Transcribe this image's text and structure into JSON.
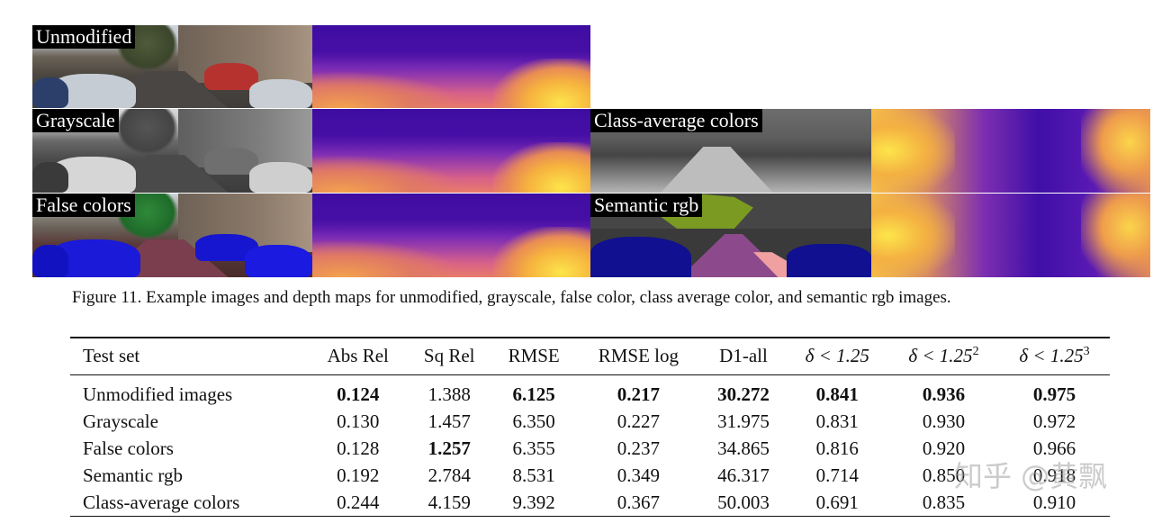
{
  "figure": {
    "panels": {
      "unmodified": {
        "label": "Unmodified"
      },
      "grayscale": {
        "label": "Grayscale"
      },
      "false_colors": {
        "label": "False colors"
      },
      "class_average": {
        "label": "Class-average colors"
      },
      "semantic_rgb": {
        "label": "Semantic rgb"
      }
    },
    "caption": "Figure 11. Example images and depth maps for unmodified, grayscale, false color, class average color, and semantic rgb images."
  },
  "table": {
    "headers": [
      "Test set",
      "Abs Rel",
      "Sq Rel",
      "RMSE",
      "RMSE log",
      "D1-all",
      "δ < 1.25",
      "δ < 1.25",
      "δ < 1.25"
    ],
    "header_superscripts": [
      "",
      "",
      "",
      "",
      "",
      "",
      "",
      "2",
      "3"
    ],
    "rows": [
      {
        "cells": [
          "Unmodified images",
          "0.124",
          "1.388",
          "6.125",
          "0.217",
          "30.272",
          "0.841",
          "0.936",
          "0.975"
        ],
        "bold": [
          false,
          true,
          false,
          true,
          true,
          true,
          true,
          true,
          true
        ]
      },
      {
        "cells": [
          "Grayscale",
          "0.130",
          "1.457",
          "6.350",
          "0.227",
          "31.975",
          "0.831",
          "0.930",
          "0.972"
        ],
        "bold": [
          false,
          false,
          false,
          false,
          false,
          false,
          false,
          false,
          false
        ]
      },
      {
        "cells": [
          "False colors",
          "0.128",
          "1.257",
          "6.355",
          "0.237",
          "34.865",
          "0.816",
          "0.920",
          "0.966"
        ],
        "bold": [
          false,
          false,
          true,
          false,
          false,
          false,
          false,
          false,
          false
        ]
      },
      {
        "cells": [
          "Semantic rgb",
          "0.192",
          "2.784",
          "8.531",
          "0.349",
          "46.317",
          "0.714",
          "0.850",
          "0.918"
        ],
        "bold": [
          false,
          false,
          false,
          false,
          false,
          false,
          false,
          false,
          false
        ]
      },
      {
        "cells": [
          "Class-average colors",
          "0.244",
          "4.159",
          "9.392",
          "0.367",
          "50.003",
          "0.691",
          "0.835",
          "0.910"
        ],
        "bold": [
          false,
          false,
          false,
          false,
          false,
          false,
          false,
          false,
          false
        ]
      }
    ]
  },
  "watermark": "知乎 @黄飘"
}
